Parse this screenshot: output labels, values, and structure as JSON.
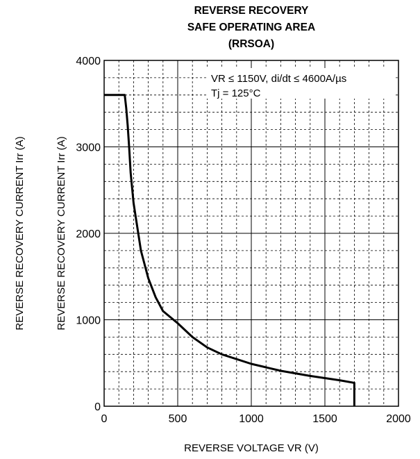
{
  "chart_data": {
    "type": "line",
    "title_lines": [
      "REVERSE RECOVERY",
      "SAFE OPERATING AREA",
      "(RRSOA)"
    ],
    "xlabel": "REVERSE VOLTAGE VR (V)",
    "ylabel": "REVERSE RECOVERY CURRENT Irr (A)",
    "xlim": [
      0,
      2000
    ],
    "ylim": [
      0,
      4000
    ],
    "x_ticks": [
      "0",
      "500",
      "1000",
      "1500",
      "2000"
    ],
    "y_ticks": [
      "0",
      "1000",
      "2000",
      "3000",
      "4000"
    ],
    "grid": "major solid, minor dashed",
    "annotations": [
      "VR ≤ 1150V, di/dt ≤ 4600A/µs",
      "Tj = 125°C"
    ],
    "series": [
      {
        "x": [
          0,
          140,
          150,
          160,
          170,
          180,
          200,
          250,
          300,
          350,
          400,
          500,
          600,
          700,
          800,
          1000,
          1200,
          1400,
          1600,
          1700,
          1700
        ],
        "y": [
          3600,
          3600,
          3450,
          3250,
          3000,
          2700,
          2350,
          1800,
          1480,
          1260,
          1100,
          960,
          800,
          680,
          600,
          490,
          410,
          350,
          300,
          270,
          0
        ]
      }
    ]
  }
}
